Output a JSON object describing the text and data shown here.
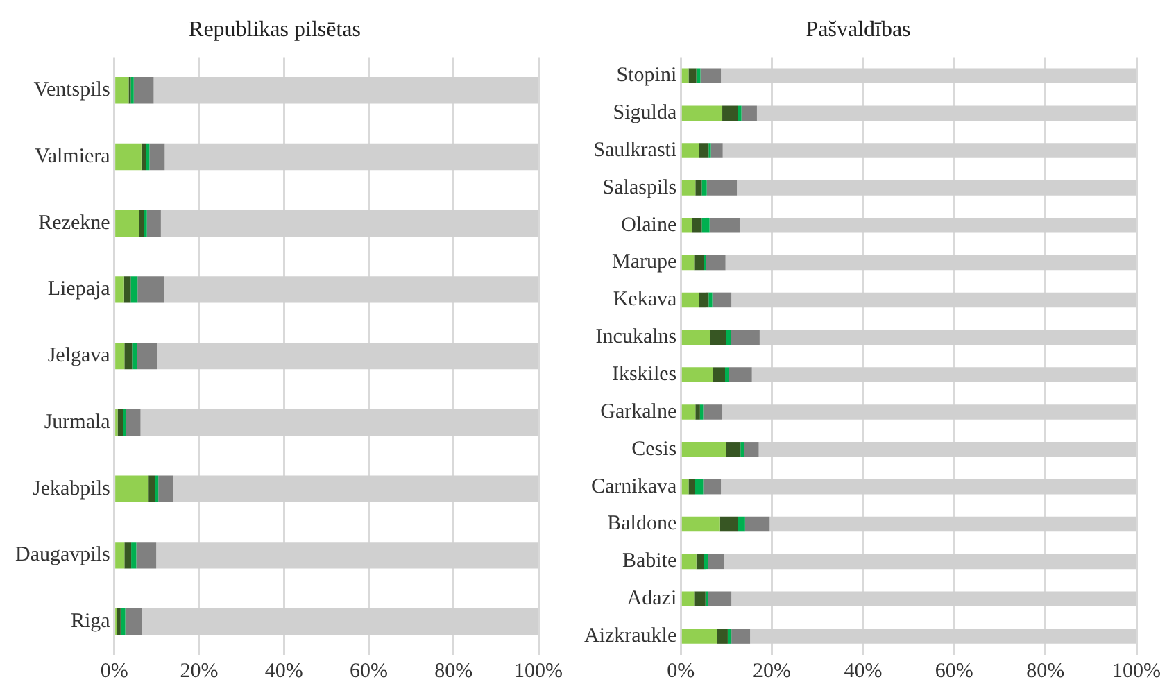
{
  "chart_data": [
    {
      "type": "bar",
      "orientation": "horizontal",
      "stacked": true,
      "title": "Republikas pilsētas",
      "categories": [
        "Ventspils",
        "Valmiera",
        "Rezekne",
        "Liepaja",
        "Jelgava",
        "Jurmala",
        "Jekabpils",
        "Daugavpils",
        "Riga"
      ],
      "series": [
        {
          "color": "#92d050",
          "values": [
            3.4,
            6.4,
            5.8,
            2.3,
            2.4,
            0.8,
            8.1,
            2.4,
            0.7
          ]
        },
        {
          "color": "#375623",
          "values": [
            0.5,
            1.1,
            1.2,
            1.6,
            1.8,
            1.3,
            1.5,
            1.6,
            0.8
          ]
        },
        {
          "color": "#00b050",
          "values": [
            0.7,
            0.8,
            0.7,
            1.6,
            1.2,
            0.7,
            0.8,
            1.2,
            1.1
          ]
        },
        {
          "color": "#808080",
          "values": [
            4.7,
            3.6,
            3.3,
            6.3,
            4.8,
            3.4,
            3.4,
            4.7,
            4.0
          ]
        },
        {
          "color": "#d0d0d0",
          "values": [
            90.7,
            88.1,
            89.0,
            88.2,
            89.8,
            93.8,
            86.2,
            90.1,
            93.4
          ]
        }
      ],
      "xlim": [
        0,
        100
      ],
      "xticks": [
        {
          "value": 0,
          "label": "0%"
        },
        {
          "value": 20,
          "label": "20%"
        },
        {
          "value": 40,
          "label": "40%"
        },
        {
          "value": 60,
          "label": "60%"
        },
        {
          "value": 80,
          "label": "80%"
        },
        {
          "value": 100,
          "label": "100%"
        }
      ],
      "grid": "x",
      "legend": false
    },
    {
      "type": "bar",
      "orientation": "horizontal",
      "stacked": true,
      "title": "Pašvaldības",
      "categories": [
        "Stopini",
        "Sigulda",
        "Saulkrasti",
        "Salaspils",
        "Olaine",
        "Marupe",
        "Kekava",
        "Incukalns",
        "Ikskiles",
        "Garkalne",
        "Cesis",
        "Carnikava",
        "Baldone",
        "Babite",
        "Adazi",
        "Aizkraukle"
      ],
      "series": [
        {
          "color": "#92d050",
          "values": [
            1.7,
            9.1,
            4.0,
            3.2,
            2.5,
            2.9,
            4.0,
            6.5,
            7.1,
            3.2,
            9.9,
            1.7,
            8.6,
            3.4,
            2.9,
            8.0
          ]
        },
        {
          "color": "#375623",
          "values": [
            1.7,
            3.4,
            2.1,
            1.4,
            2.1,
            2.1,
            2.1,
            3.4,
            2.6,
            1.0,
            3.2,
            1.4,
            4.0,
            1.7,
            2.5,
            2.3
          ]
        },
        {
          "color": "#00b050",
          "values": [
            0.9,
            0.8,
            0.5,
            1.1,
            1.7,
            0.5,
            0.8,
            1.1,
            0.9,
            0.7,
            0.8,
            1.8,
            1.5,
            0.9,
            0.6,
            0.8
          ]
        },
        {
          "color": "#808080",
          "values": [
            4.5,
            3.4,
            2.6,
            6.6,
            6.6,
            4.3,
            4.2,
            6.3,
            5.0,
            4.2,
            3.2,
            3.9,
            5.4,
            3.4,
            5.1,
            4.1
          ]
        },
        {
          "color": "#d0d0d0",
          "values": [
            91.2,
            83.3,
            90.8,
            87.7,
            87.1,
            90.2,
            88.9,
            82.7,
            84.4,
            90.9,
            82.9,
            91.2,
            80.5,
            90.6,
            88.9,
            84.8
          ]
        }
      ],
      "xlim": [
        0,
        100
      ],
      "xticks": [
        {
          "value": 0,
          "label": "0%"
        },
        {
          "value": 20,
          "label": "20%"
        },
        {
          "value": 40,
          "label": "40%"
        },
        {
          "value": 60,
          "label": "60%"
        },
        {
          "value": 80,
          "label": "80%"
        },
        {
          "value": 100,
          "label": "100%"
        }
      ],
      "grid": "x",
      "legend": false
    }
  ]
}
